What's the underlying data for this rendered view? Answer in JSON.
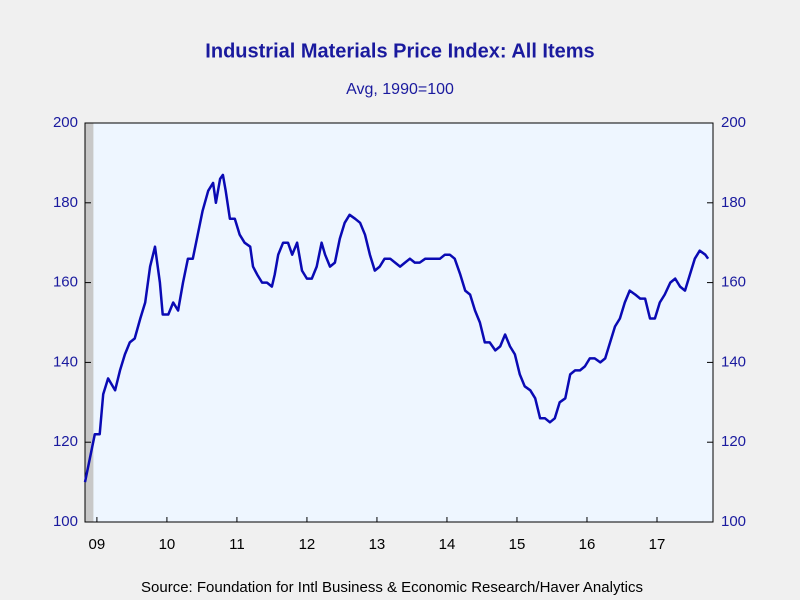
{
  "chart_data": {
    "type": "line",
    "title": "Industrial Materials Price Index: All Items",
    "subtitle": "Avg, 1990=100",
    "source": "Source:  Foundation for Intl Business & Economic Research/Haver Analytics",
    "x": [
      2009.33,
      2009.4,
      2009.47,
      2009.54,
      2009.59,
      2009.66,
      2009.76,
      2009.83,
      2009.9,
      2009.97,
      2010.04,
      2010.12,
      2010.19,
      2010.26,
      2010.33,
      2010.4,
      2010.44,
      2010.52,
      2010.59,
      2010.66,
      2010.73,
      2010.8,
      2010.87,
      2010.94,
      2011.01,
      2011.09,
      2011.16,
      2011.2,
      2011.26,
      2011.3,
      2011.34,
      2011.4,
      2011.47,
      2011.54,
      2011.61,
      2011.69,
      2011.73,
      2011.79,
      2011.86,
      2011.93,
      2012.0,
      2012.04,
      2012.09,
      2012.16,
      2012.23,
      2012.29,
      2012.36,
      2012.43,
      2012.5,
      2012.57,
      2012.64,
      2012.71,
      2012.76,
      2012.83,
      2012.9,
      2012.97,
      2013.04,
      2013.11,
      2013.19,
      2013.26,
      2013.33,
      2013.4,
      2013.47,
      2013.54,
      2013.61,
      2013.69,
      2013.76,
      2013.83,
      2013.9,
      2013.97,
      2014.04,
      2014.11,
      2014.19,
      2014.26,
      2014.33,
      2014.4,
      2014.47,
      2014.54,
      2014.61,
      2014.69,
      2014.76,
      2014.83,
      2014.9,
      2014.97,
      2015.04,
      2015.11,
      2015.19,
      2015.26,
      2015.33,
      2015.4,
      2015.47,
      2015.54,
      2015.61,
      2015.69,
      2015.76,
      2015.83,
      2015.9,
      2015.97,
      2016.04,
      2016.11,
      2016.19,
      2016.26,
      2016.33,
      2016.4,
      2016.47,
      2016.54,
      2016.61,
      2016.69,
      2016.76,
      2016.83,
      2016.9,
      2016.97,
      2017.04,
      2017.11,
      2017.19,
      2017.26,
      2017.33,
      2017.4,
      2017.47,
      2017.54,
      2017.61,
      2017.69,
      2017.76,
      2017.83,
      2017.9,
      2017.97,
      2018.04,
      2018.11,
      2018.19,
      2018.23
    ],
    "series": [
      {
        "color": "#0a0ab4",
        "values": [
          110,
          116,
          122,
          122,
          132,
          136,
          133,
          138,
          142,
          145,
          146,
          151,
          155,
          164,
          169,
          160,
          152,
          152,
          155,
          153,
          160,
          166,
          166,
          172,
          178,
          183,
          185,
          180,
          186,
          187,
          183,
          176,
          176,
          172,
          170,
          169,
          164,
          162,
          160,
          160,
          159,
          162,
          167,
          170,
          170,
          167,
          170,
          163,
          161,
          161,
          164,
          170,
          167,
          164,
          165,
          171,
          175,
          177,
          176,
          175,
          172,
          167,
          163,
          164,
          166,
          166,
          165,
          164,
          165,
          166,
          165,
          165,
          166,
          166,
          166,
          166,
          167,
          167,
          166,
          162,
          158,
          157,
          153,
          150,
          145,
          145,
          143,
          144,
          147,
          144,
          142,
          137,
          134,
          133,
          131,
          126,
          126,
          125,
          126,
          130,
          131,
          137,
          138,
          138,
          139,
          141,
          141,
          140,
          141,
          145,
          149,
          151,
          155,
          158,
          157,
          156,
          156,
          151,
          151,
          155,
          157,
          160,
          161,
          159,
          158,
          162,
          166,
          168,
          167,
          166
        ]
      }
    ],
    "xlim": [
      2009.33,
      2018.3
    ],
    "xticks": [
      {
        "value": 2009.5,
        "label": "09"
      },
      {
        "value": 2010.5,
        "label": "10"
      },
      {
        "value": 2011.5,
        "label": "11"
      },
      {
        "value": 2012.5,
        "label": "12"
      },
      {
        "value": 2013.5,
        "label": "13"
      },
      {
        "value": 2014.5,
        "label": "14"
      },
      {
        "value": 2015.5,
        "label": "15"
      },
      {
        "value": 2016.5,
        "label": "16"
      },
      {
        "value": 2017.5,
        "label": "17"
      }
    ],
    "ylim": [
      100,
      200
    ],
    "yticks": [
      100,
      120,
      140,
      160,
      180,
      200
    ],
    "y2lim": [
      100,
      200
    ],
    "y2ticks": [
      100,
      120,
      140,
      160,
      180,
      200
    ],
    "shaded_range": [
      2009.33,
      2009.45
    ]
  }
}
